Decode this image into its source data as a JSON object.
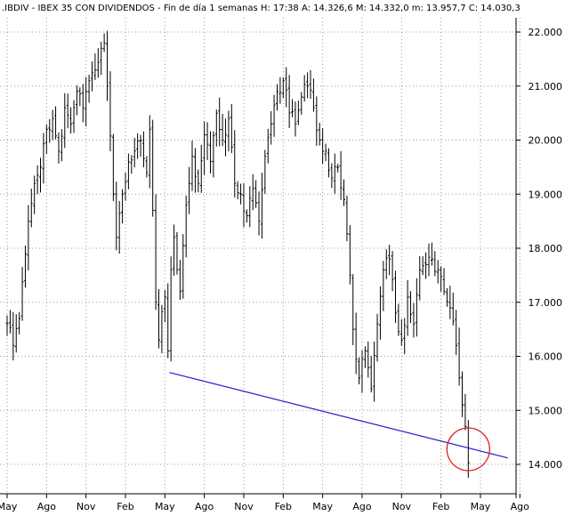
{
  "chart_data": {
    "type": "ohlc",
    "title": ".IBDIV - IBEX 35 CON DIVIDENDOS - Fin de día 1 semanas H: 17:38 A: 14.326,6 M: 14.332,0 m: 13.957,7 C: 14.030,3",
    "ylim": [
      13800,
      22300
    ],
    "y_ticks": [
      {
        "value": 14000,
        "label": "14.000"
      },
      {
        "value": 15000,
        "label": "15.000"
      },
      {
        "value": 16000,
        "label": "16.000"
      },
      {
        "value": 17000,
        "label": "17.000"
      },
      {
        "value": 18000,
        "label": "18.000"
      },
      {
        "value": 19000,
        "label": "19.000"
      },
      {
        "value": 20000,
        "label": "20.000"
      },
      {
        "value": 21000,
        "label": "21.000"
      },
      {
        "value": 22000,
        "label": "22.000"
      }
    ],
    "x_ticks": [
      {
        "week": 0,
        "label": "May"
      },
      {
        "week": 13,
        "label": "Ago"
      },
      {
        "week": 26,
        "label": "Nov"
      },
      {
        "week": 39,
        "label": "Feb"
      },
      {
        "week": 52,
        "label": "May"
      },
      {
        "week": 65,
        "label": "Ago"
      },
      {
        "week": 78,
        "label": "Nov"
      },
      {
        "week": 91,
        "label": "Feb"
      },
      {
        "week": 104,
        "label": "May"
      },
      {
        "week": 117,
        "label": "Ago"
      },
      {
        "week": 130,
        "label": "Nov"
      },
      {
        "week": 143,
        "label": "Feb"
      },
      {
        "week": 156,
        "label": "May"
      },
      {
        "week": 169,
        "label": "Ago"
      }
    ],
    "x_range": [
      0,
      169
    ],
    "grid": true,
    "close_anchors": [
      [
        0,
        16600
      ],
      [
        2,
        16200
      ],
      [
        4,
        16700
      ],
      [
        7,
        18500
      ],
      [
        9,
        19200
      ],
      [
        11,
        19500
      ],
      [
        13,
        20200
      ],
      [
        15,
        20400
      ],
      [
        17,
        19800
      ],
      [
        19,
        20600
      ],
      [
        21,
        20300
      ],
      [
        23,
        20900
      ],
      [
        25,
        20600
      ],
      [
        27,
        21100
      ],
      [
        29,
        21300
      ],
      [
        31,
        21700
      ],
      [
        32,
        21800
      ],
      [
        33,
        21000
      ],
      [
        35,
        19000
      ],
      [
        36,
        18200
      ],
      [
        38,
        19000
      ],
      [
        40,
        19600
      ],
      [
        42,
        19800
      ],
      [
        44,
        20000
      ],
      [
        46,
        19400
      ],
      [
        47,
        20200
      ],
      [
        48,
        18700
      ],
      [
        49,
        17000
      ],
      [
        50,
        16300
      ],
      [
        52,
        17100
      ],
      [
        53,
        16100
      ],
      [
        54,
        17600
      ],
      [
        55,
        18200
      ],
      [
        57,
        17200
      ],
      [
        59,
        18800
      ],
      [
        61,
        19700
      ],
      [
        63,
        19200
      ],
      [
        65,
        20100
      ],
      [
        67,
        19600
      ],
      [
        69,
        20500
      ],
      [
        71,
        20000
      ],
      [
        73,
        20400
      ],
      [
        75,
        19200
      ],
      [
        77,
        19000
      ],
      [
        79,
        18600
      ],
      [
        81,
        19100
      ],
      [
        83,
        18500
      ],
      [
        85,
        19700
      ],
      [
        87,
        20300
      ],
      [
        89,
        20900
      ],
      [
        91,
        21100
      ],
      [
        93,
        20500
      ],
      [
        95,
        20300
      ],
      [
        97,
        20800
      ],
      [
        99,
        21000
      ],
      [
        101,
        20600
      ],
      [
        103,
        20000
      ],
      [
        105,
        19800
      ],
      [
        107,
        19300
      ],
      [
        109,
        19500
      ],
      [
        111,
        18900
      ],
      [
        113,
        17500
      ],
      [
        114,
        16500
      ],
      [
        116,
        15600
      ],
      [
        118,
        16100
      ],
      [
        120,
        15400
      ],
      [
        122,
        16600
      ],
      [
        124,
        17600
      ],
      [
        126,
        17800
      ],
      [
        128,
        16800
      ],
      [
        130,
        16300
      ],
      [
        132,
        17100
      ],
      [
        134,
        16600
      ],
      [
        136,
        17600
      ],
      [
        138,
        17700
      ],
      [
        140,
        17800
      ],
      [
        142,
        17600
      ],
      [
        144,
        17200
      ],
      [
        146,
        16900
      ],
      [
        148,
        16200
      ],
      [
        150,
        15100
      ],
      [
        151,
        14700
      ],
      [
        152,
        14030
      ]
    ],
    "trendline": [
      {
        "week": 53.5,
        "value": 15700
      },
      {
        "week": 165,
        "value": 14120
      }
    ],
    "highlight_circle": {
      "week": 152,
      "value": 14280
    }
  }
}
